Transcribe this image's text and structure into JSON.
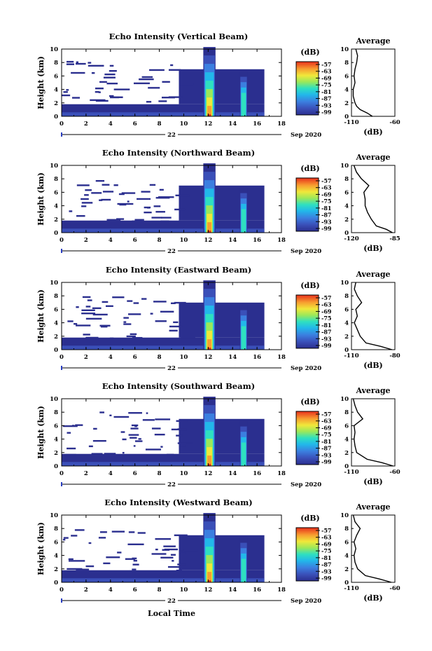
{
  "figure": {
    "date_label": "Sep 2020",
    "day_label": "22",
    "x_axis_label": "Local Time",
    "height_label": "Height (km)",
    "colorbar_unit": "(dB)",
    "avg_title": "Average",
    "avg_unit": "(dB)"
  },
  "chart_data": [
    {
      "type": "heatmap",
      "title": "Echo Intensity (Vertical Beam)",
      "xlabel": "",
      "ylabel": "Height (km)",
      "xlim": [
        0,
        18
      ],
      "ylim": [
        0,
        10
      ],
      "x_ticks": [
        "0",
        "2",
        "4",
        "6",
        "8",
        "10",
        "12",
        "14",
        "16",
        "18"
      ],
      "y_ticks": [
        "0",
        "2",
        "4",
        "6",
        "8",
        "10"
      ],
      "colorbar_ticks": [
        "-57",
        "-63",
        "-69",
        "-75",
        "-81",
        "-87",
        "-93",
        "-99"
      ],
      "average": {
        "xlim": [
          -110,
          -60
        ],
        "x_ticks": [
          "-110",
          "-60"
        ],
        "profile": [
          [
            -86,
            0
          ],
          [
            -92,
            0.5
          ],
          [
            -100,
            1
          ],
          [
            -104,
            1.5
          ],
          [
            -106,
            2
          ],
          [
            -108,
            3
          ],
          [
            -108,
            4
          ],
          [
            -106,
            5
          ],
          [
            -107,
            6
          ],
          [
            -106,
            7
          ],
          [
            -104,
            8
          ],
          [
            -103,
            9
          ],
          [
            -105,
            10
          ]
        ]
      }
    },
    {
      "type": "heatmap",
      "title": "Echo Intensity (Northward Beam)",
      "xlabel": "",
      "ylabel": "Height (km)",
      "xlim": [
        0,
        18
      ],
      "ylim": [
        0,
        10
      ],
      "x_ticks": [
        "0",
        "2",
        "4",
        "6",
        "8",
        "10",
        "12",
        "14",
        "16",
        "18"
      ],
      "y_ticks": [
        "0",
        "2",
        "4",
        "6",
        "8",
        "10"
      ],
      "colorbar_ticks": [
        "-57",
        "-63",
        "-69",
        "-75",
        "-81",
        "-87",
        "-93",
        "-99"
      ],
      "average": {
        "xlim": [
          -120,
          -85
        ],
        "x_ticks": [
          "-120",
          "-85"
        ],
        "profile": [
          [
            -87,
            0
          ],
          [
            -92,
            0.5
          ],
          [
            -100,
            1
          ],
          [
            -104,
            2
          ],
          [
            -107,
            3
          ],
          [
            -109,
            4
          ],
          [
            -109,
            5
          ],
          [
            -110,
            6
          ],
          [
            -106,
            7
          ],
          [
            -112,
            8
          ],
          [
            -116,
            9
          ],
          [
            -118,
            10
          ]
        ]
      }
    },
    {
      "type": "heatmap",
      "title": "Echo Intensity (Eastward Beam)",
      "xlabel": "",
      "ylabel": "Height (km)",
      "xlim": [
        0,
        18
      ],
      "ylim": [
        0,
        10
      ],
      "x_ticks": [
        "0",
        "2",
        "4",
        "6",
        "8",
        "10",
        "12",
        "14",
        "16",
        "18"
      ],
      "y_ticks": [
        "0",
        "2",
        "4",
        "6",
        "8",
        "10"
      ],
      "colorbar_ticks": [
        "-57",
        "-63",
        "-69",
        "-75",
        "-81",
        "-87",
        "-93",
        "-99"
      ],
      "average": {
        "xlim": [
          -110,
          -80
        ],
        "x_ticks": [
          "-110",
          "-80"
        ],
        "profile": [
          [
            -82,
            0
          ],
          [
            -90,
            0.5
          ],
          [
            -100,
            1
          ],
          [
            -104,
            2
          ],
          [
            -106,
            3
          ],
          [
            -108,
            4
          ],
          [
            -106,
            5
          ],
          [
            -107,
            6
          ],
          [
            -103,
            7
          ],
          [
            -106,
            8
          ],
          [
            -108,
            9
          ],
          [
            -107,
            10
          ]
        ]
      }
    },
    {
      "type": "heatmap",
      "title": "Echo Intensity (Southward Beam)",
      "xlabel": "",
      "ylabel": "Height (km)",
      "xlim": [
        0,
        18
      ],
      "ylim": [
        0,
        10
      ],
      "x_ticks": [
        "0",
        "2",
        "4",
        "6",
        "8",
        "10",
        "12",
        "14",
        "16",
        "18"
      ],
      "y_ticks": [
        "0",
        "2",
        "4",
        "6",
        "8",
        "10"
      ],
      "colorbar_ticks": [
        "-57",
        "-63",
        "-69",
        "-75",
        "-81",
        "-87",
        "-93",
        "-99"
      ],
      "average": {
        "xlim": [
          -110,
          -60
        ],
        "x_ticks": [
          "-110",
          "-60"
        ],
        "profile": [
          [
            -62,
            0
          ],
          [
            -75,
            0.5
          ],
          [
            -92,
            1
          ],
          [
            -104,
            2
          ],
          [
            -106,
            3
          ],
          [
            -107,
            4
          ],
          [
            -106,
            5
          ],
          [
            -107,
            6
          ],
          [
            -97,
            7
          ],
          [
            -103,
            8
          ],
          [
            -106,
            9
          ],
          [
            -108,
            10
          ]
        ]
      }
    },
    {
      "type": "heatmap",
      "title": "Echo Intensity (Westward Beam)",
      "xlabel": "Local Time",
      "ylabel": "Height (km)",
      "xlim": [
        0,
        18
      ],
      "ylim": [
        0,
        10
      ],
      "x_ticks": [
        "0",
        "2",
        "4",
        "6",
        "8",
        "10",
        "12",
        "14",
        "16",
        "18"
      ],
      "y_ticks": [
        "0",
        "2",
        "4",
        "6",
        "8",
        "10"
      ],
      "colorbar_ticks": [
        "-57",
        "-63",
        "-69",
        "-75",
        "-81",
        "-87",
        "-93",
        "-99"
      ],
      "average": {
        "xlim": [
          -110,
          -60
        ],
        "x_ticks": [
          "-110",
          "-60"
        ],
        "profile": [
          [
            -64,
            0
          ],
          [
            -78,
            0.5
          ],
          [
            -94,
            1
          ],
          [
            -103,
            2
          ],
          [
            -106,
            3
          ],
          [
            -107,
            4
          ],
          [
            -105,
            5
          ],
          [
            -107,
            6
          ],
          [
            -104,
            7
          ],
          [
            -100,
            8
          ],
          [
            -106,
            9
          ],
          [
            -108,
            10
          ]
        ]
      }
    }
  ]
}
